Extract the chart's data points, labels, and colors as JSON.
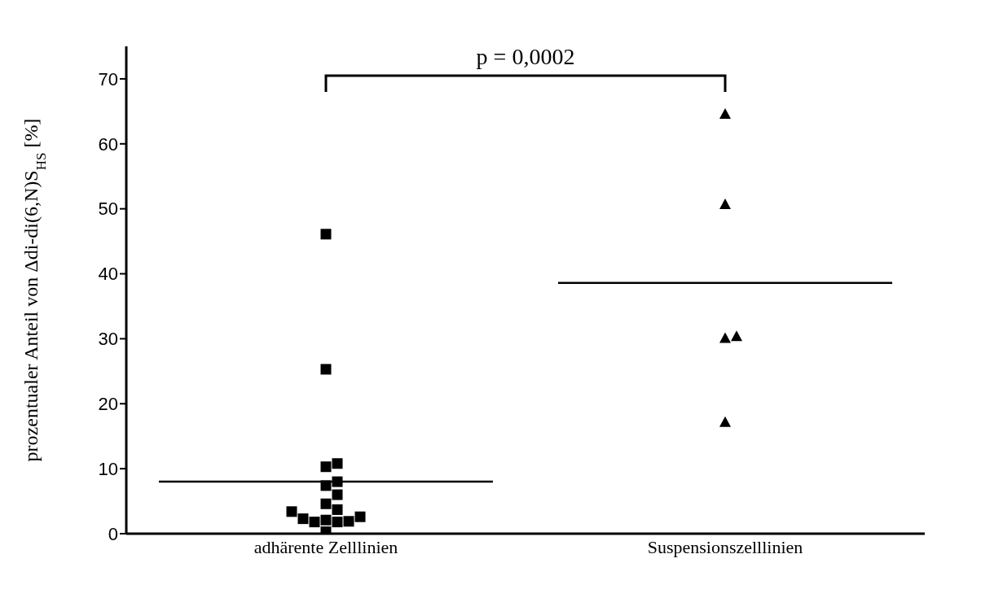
{
  "chart_data": {
    "type": "scatter",
    "ylabel": "prozentualer Anteil von Δdi-di(6,N)S$_{HS}$ [%]",
    "categories": [
      "adhärente Zelllinien",
      "Suspensionszelllinien"
    ],
    "series": [
      {
        "marker": "square",
        "color": "#000000",
        "x": [
          "adhärente Zelllinien",
          "adhärente Zelllinien",
          "adhärente Zelllinien",
          "adhärente Zelllinien",
          "adhärente Zelllinien",
          "adhärente Zelllinien",
          "adhärente Zelllinien",
          "adhärente Zelllinien",
          "adhärente Zelllinien",
          "adhärente Zelllinien",
          "adhärente Zelllinien",
          "adhärente Zelllinien",
          "adhärente Zelllinien",
          "adhärente Zelllinien",
          "adhärente Zelllinien",
          "adhärente Zelllinien",
          "adhärente Zelllinien"
        ],
        "values": [
          46.1,
          25.3,
          10.8,
          10.3,
          8.0,
          7.4,
          6.0,
          4.6,
          3.7,
          3.4,
          2.6,
          2.3,
          2.1,
          1.9,
          1.8,
          1.8,
          0.3
        ]
      },
      {
        "marker": "triangle",
        "color": "#000000",
        "x": [
          "Suspensionszelllinien",
          "Suspensionszelllinien",
          "Suspensionszelllinien",
          "Suspensionszelllinien",
          "Suspensionszelllinien"
        ],
        "values": [
          64.6,
          50.7,
          30.4,
          30.1,
          17.2
        ]
      }
    ],
    "ref_lines": [
      {
        "axis": "y",
        "value": 8.0,
        "color": "#000000"
      },
      {
        "axis": "y",
        "value": 38.6,
        "color": "#000000"
      }
    ],
    "ylim": [
      0,
      75
    ],
    "yticks": [
      0,
      10,
      20,
      30,
      40,
      50,
      60,
      70
    ],
    "annotations": [
      "p = 0,0002"
    ]
  }
}
